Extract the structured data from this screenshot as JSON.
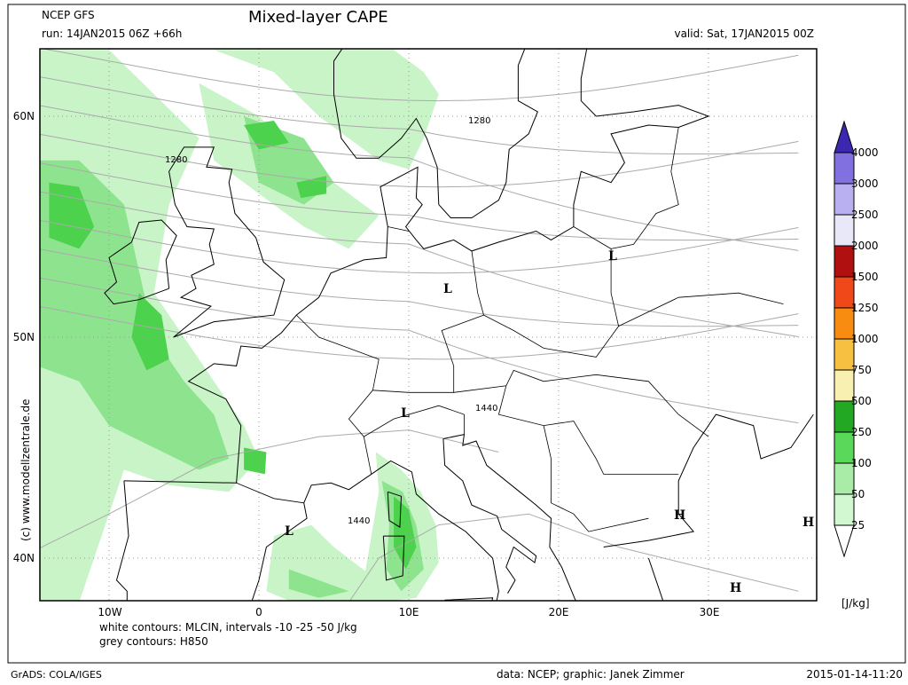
{
  "header": {
    "model": "NCEP GFS",
    "run": "run: 14JAN2015 06Z +66h",
    "title": "Mixed-layer CAPE",
    "valid": "valid: Sat, 17JAN2015 00Z"
  },
  "map": {
    "lat_labels": [
      "60N",
      "50N",
      "40N"
    ],
    "lon_labels": [
      "10W",
      "0",
      "10E",
      "20E",
      "30E"
    ],
    "contour_labels": [
      "1280",
      "1280",
      "1440",
      "1440"
    ],
    "pressure_centers": [
      "L",
      "L",
      "L",
      "L",
      "H",
      "H",
      "H"
    ],
    "credit": "(c) www.modellzentrale.de"
  },
  "colorbar": {
    "levels": [
      25,
      50,
      100,
      250,
      500,
      750,
      1000,
      1250,
      1500,
      2000,
      2500,
      3000,
      4000
    ],
    "colors": [
      "#ffffff",
      "#d2f8d2",
      "#a8eca8",
      "#5ad85a",
      "#22a822",
      "#f8f0b0",
      "#f8c040",
      "#f88c10",
      "#f04818",
      "#b01010",
      "#e8e8f8",
      "#b8b0f0",
      "#8070e0",
      "#3c28b0"
    ],
    "unit": "[J/kg]"
  },
  "footer": {
    "legend1": "white contours: MLCIN, intervals -10 -25 -50 J/kg",
    "legend2": "grey contours: H850",
    "software": "GrADS: COLA/IGES",
    "credits": "data: NCEP; graphic: Janek Zimmer",
    "timestamp": "2015-01-14-11:20"
  }
}
